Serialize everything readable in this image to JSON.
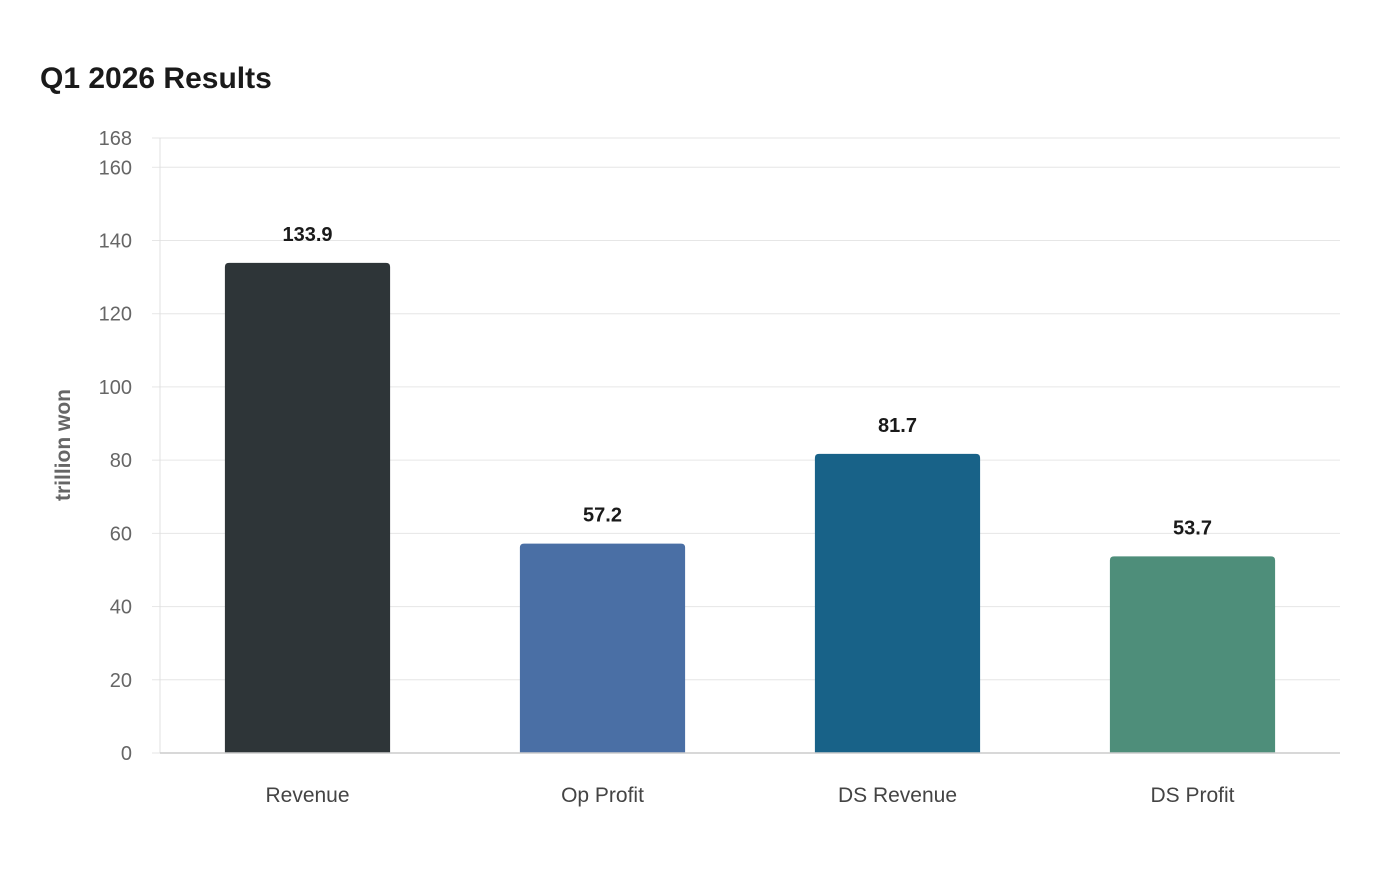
{
  "chart_data": {
    "type": "bar",
    "title": "Q1 2026 Results",
    "xlabel": "",
    "ylabel": "trillion won",
    "categories": [
      "Revenue",
      "Op Profit",
      "DS Revenue",
      "DS Profit"
    ],
    "values": [
      133.9,
      57.2,
      81.7,
      53.7
    ],
    "value_labels": [
      "133.9",
      "57.2",
      "81.7",
      "53.7"
    ],
    "colors": [
      "#2e3538",
      "#4a6fa5",
      "#186288",
      "#4e8e7a"
    ],
    "ylim": [
      0,
      168
    ],
    "yticks": [
      0,
      20,
      40,
      60,
      80,
      100,
      120,
      140,
      160,
      168
    ],
    "grid": true,
    "legend": "none"
  }
}
